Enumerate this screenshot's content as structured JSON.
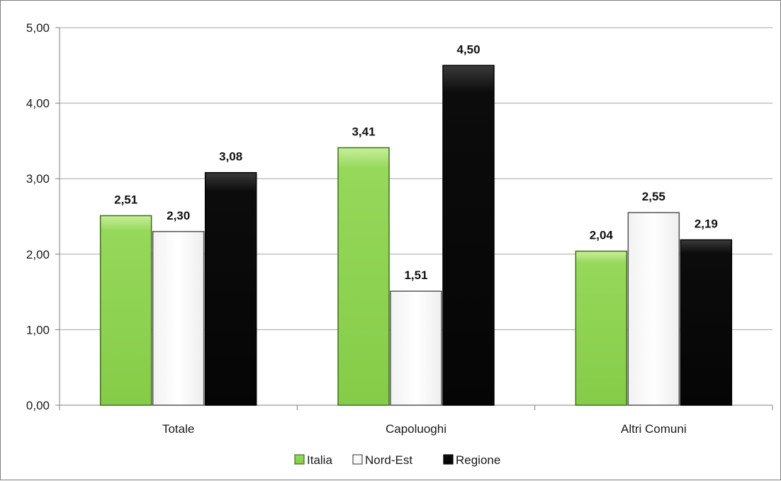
{
  "chart_data": {
    "type": "bar",
    "categories": [
      "Totale",
      "Capoluoghi",
      "Altri Comuni"
    ],
    "series": [
      {
        "name": "Italia",
        "values": [
          2.51,
          3.41,
          2.04
        ],
        "color": "#8fd14f",
        "value_labels": [
          "2,51",
          "3,41",
          "2,04"
        ]
      },
      {
        "name": "Nord-Est",
        "values": [
          2.3,
          1.51,
          2.55
        ],
        "color": "#ffffff",
        "value_labels": [
          "2,30",
          "1,51",
          "2,55"
        ]
      },
      {
        "name": "Regione",
        "values": [
          3.08,
          4.5,
          2.19
        ],
        "color": "#0a0a0a",
        "value_labels": [
          "3,08",
          "4,50",
          "2,19"
        ]
      }
    ],
    "ylim": [
      0,
      5
    ],
    "yticks": [
      0,
      1,
      2,
      3,
      4,
      5
    ],
    "ytick_labels": [
      "0,00",
      "1,00",
      "2,00",
      "3,00",
      "4,00",
      "5,00"
    ],
    "grid": true,
    "legend_position": "bottom-center",
    "title": "",
    "xlabel": "",
    "ylabel": ""
  }
}
